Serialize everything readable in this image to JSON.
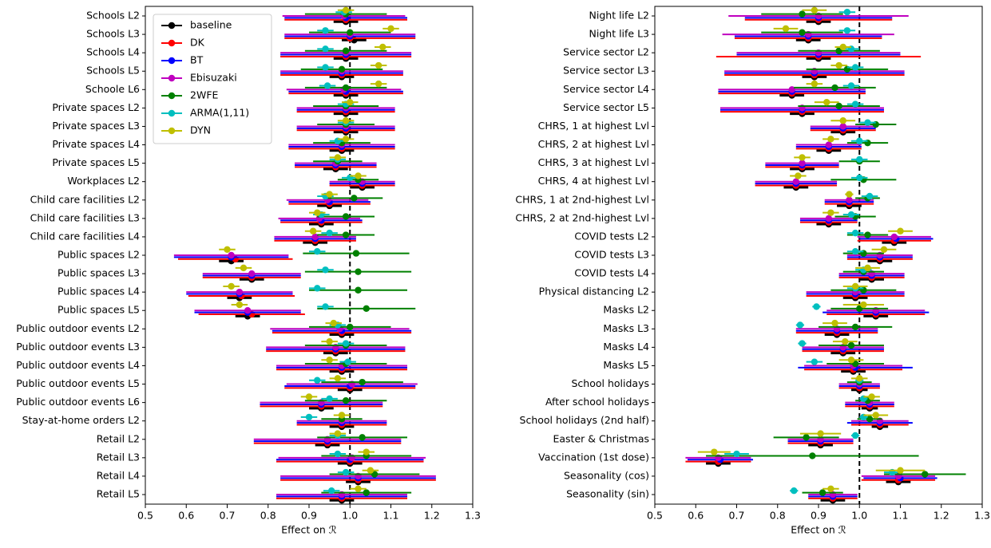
{
  "chart_data": [
    {
      "type": "forest",
      "xlabel": "Effect on ℛ",
      "categories": [
        "Schools L2",
        "Schools L3",
        "Schools L4",
        "Schools L5",
        "Schoole L6",
        "Private spaces L2",
        "Private spaces L3",
        "Private spaces L4",
        "Private spaces L5",
        "Workplaces L2",
        "Child care facilities L2",
        "Child care facilities L3",
        "Child care facilities L4",
        "Public spaces L2",
        "Public spaces L3",
        "Public spaces L4",
        "Public spaces L5",
        "Public outdoor events L2",
        "Public outdoor events L3",
        "Public outdoor events L4",
        "Public outdoor events L5",
        "Public outdoor events L6",
        "Stay-at-home orders L2",
        "Retail L2",
        "Retail L3",
        "Retail L4",
        "Retail L5"
      ],
      "series": [
        {
          "name": "baseline",
          "color": "#000000",
          "values": [
            0.99,
            1.01,
            0.99,
            0.98,
            0.99,
            0.99,
            0.99,
            0.98,
            0.965,
            1.03,
            0.95,
            0.93,
            0.915,
            0.71,
            0.76,
            0.73,
            0.75,
            0.98,
            0.965,
            0.98,
            1.0,
            0.93,
            0.98,
            0.945,
            1.0,
            1.02,
            0.98
          ],
          "errors": [
            0.03,
            0.03,
            0.03,
            0.03,
            0.03,
            0.03,
            0.03,
            0.03,
            0.03,
            0.03,
            0.03,
            0.03,
            0.03,
            0.03,
            0.03,
            0.03,
            0.03,
            0.03,
            0.03,
            0.03,
            0.03,
            0.03,
            0.03,
            0.03,
            0.03,
            0.03,
            0.03
          ]
        },
        {
          "name": "DK",
          "color": "#ff0000",
          "values": [
            0.99,
            1.0,
            0.99,
            0.98,
            0.99,
            0.99,
            0.99,
            0.98,
            0.965,
            1.03,
            0.95,
            0.93,
            0.915,
            0.72,
            0.76,
            0.735,
            0.76,
            0.98,
            0.965,
            0.98,
            1.0,
            0.93,
            0.98,
            0.945,
            1.0,
            1.02,
            0.98
          ],
          "errors": [
            0.15,
            0.16,
            0.16,
            0.15,
            0.14,
            0.12,
            0.12,
            0.13,
            0.1,
            0.08,
            0.1,
            0.1,
            0.1,
            0.14,
            0.12,
            0.13,
            0.13,
            0.17,
            0.17,
            0.16,
            0.16,
            0.15,
            0.11,
            0.18,
            0.18,
            0.19,
            0.16
          ]
        },
        {
          "name": "BT",
          "color": "#0000ff",
          "values": [
            0.99,
            1.0,
            0.99,
            0.98,
            0.99,
            0.99,
            0.99,
            0.98,
            0.965,
            1.03,
            0.95,
            0.93,
            0.915,
            0.71,
            0.76,
            0.73,
            0.75,
            0.98,
            0.965,
            0.98,
            1.0,
            0.93,
            0.98,
            0.945,
            1.0,
            1.02,
            0.98
          ],
          "errors": [
            0.15,
            0.16,
            0.16,
            0.15,
            0.14,
            0.12,
            0.12,
            0.13,
            0.1,
            0.08,
            0.1,
            0.1,
            0.1,
            0.14,
            0.12,
            0.13,
            0.13,
            0.17,
            0.17,
            0.16,
            0.16,
            0.15,
            0.11,
            0.18,
            0.18,
            0.19,
            0.16
          ]
        },
        {
          "name": "Ebisuzaki",
          "color": "#bf00bf",
          "values": [
            0.985,
            1.0,
            0.99,
            0.98,
            0.985,
            0.99,
            0.99,
            0.98,
            0.965,
            1.03,
            0.945,
            0.925,
            0.915,
            0.71,
            0.76,
            0.73,
            0.75,
            0.975,
            0.965,
            0.98,
            1.005,
            0.93,
            0.98,
            0.945,
            1.005,
            1.02,
            0.98
          ],
          "errors": [
            0.15,
            0.16,
            0.16,
            0.15,
            0.14,
            0.12,
            0.12,
            0.13,
            0.1,
            0.08,
            0.1,
            0.1,
            0.1,
            0.14,
            0.12,
            0.13,
            0.13,
            0.17,
            0.17,
            0.16,
            0.16,
            0.15,
            0.11,
            0.18,
            0.18,
            0.19,
            0.16
          ]
        },
        {
          "name": "2WFE",
          "color": "#008000",
          "values": [
            0.99,
            1.0,
            0.99,
            0.98,
            0.99,
            0.99,
            0.99,
            0.98,
            0.97,
            1.02,
            1.01,
            0.99,
            0.99,
            1.015,
            1.02,
            1.02,
            1.04,
            1.0,
            0.99,
            0.99,
            1.03,
            0.99,
            0.98,
            1.03,
            1.04,
            1.06,
            1.04
          ],
          "errors": [
            0.1,
            0.1,
            0.1,
            0.1,
            0.1,
            0.08,
            0.07,
            0.07,
            0.06,
            0.05,
            0.07,
            0.07,
            0.07,
            0.13,
            0.13,
            0.12,
            0.12,
            0.1,
            0.1,
            0.1,
            0.1,
            0.1,
            0.05,
            0.11,
            0.11,
            0.11,
            0.11
          ]
        },
        {
          "name": "ARMA(1,11)",
          "color": "#00bfbf",
          "values": [
            0.985,
            0.94,
            0.94,
            0.94,
            0.945,
            0.99,
            0.99,
            0.97,
            0.97,
            1.0,
            0.94,
            0.93,
            0.95,
            0.92,
            0.94,
            0.92,
            0.94,
            0.97,
            0.99,
            0.995,
            0.92,
            0.95,
            0.9,
            0.97,
            0.97,
            0.99,
            0.955
          ],
          "errors": [
            0.02,
            0.02,
            0.02,
            0.02,
            0.02,
            0.02,
            0.02,
            0.02,
            0.02,
            0.02,
            0.02,
            0.02,
            0.02,
            0.02,
            0.02,
            0.02,
            0.02,
            0.02,
            0.02,
            0.02,
            0.02,
            0.02,
            0.02,
            0.02,
            0.02,
            0.02,
            0.02
          ]
        },
        {
          "name": "DYN",
          "color": "#bfbf00",
          "values": [
            0.99,
            1.1,
            1.08,
            1.07,
            1.07,
            1.0,
            0.99,
            0.99,
            0.97,
            1.02,
            0.95,
            0.92,
            0.91,
            0.7,
            0.74,
            0.71,
            0.73,
            0.96,
            0.95,
            0.95,
            0.97,
            0.9,
            0.98,
            0.97,
            1.04,
            1.05,
            1.02
          ],
          "errors": [
            0.02,
            0.02,
            0.02,
            0.02,
            0.02,
            0.02,
            0.02,
            0.02,
            0.02,
            0.02,
            0.02,
            0.02,
            0.02,
            0.02,
            0.02,
            0.02,
            0.02,
            0.02,
            0.02,
            0.02,
            0.02,
            0.02,
            0.02,
            0.02,
            0.02,
            0.02,
            0.02
          ]
        }
      ],
      "xlim": [
        0.5,
        1.3
      ],
      "xticks": [
        0.5,
        0.6,
        0.7,
        0.8,
        0.9,
        {
          "value": 1,
          "label": "1.0"
        },
        1.1,
        1.2,
        1.3
      ],
      "vline": 1,
      "legend": "upper left"
    },
    {
      "type": "forest",
      "xlabel": "Effect on ℛ",
      "categories": [
        "Night life L2",
        "Night life L3",
        "Service sector L2",
        "Service sector L3",
        "Service sector L4",
        "Service sector L5",
        "CHRS, 1 at highest Lvl",
        "CHRS, 2 at highest Lvl",
        "CHRS, 3 at highest Lvl",
        "CHRS, 4 at highest Lvl",
        "CHRS, 1 at 2nd-highest Lvl",
        "CHRS, 2 at 2nd-highest Lvl",
        "COVID tests L2",
        "COVID tests L3",
        "COVID tests L4",
        "Physical distancing L2",
        "Masks L2",
        "Masks L3",
        "Masks L4",
        "Masks L5",
        "School holidays",
        "After school holidays",
        "School holidays (2nd half)",
        "Easter & Christmas",
        "Vaccination (1st dose)",
        "Seasonality (cos)",
        "Seasonality (sin)"
      ],
      "series": [
        {
          "name": "baseline",
          "color": "#000000",
          "values": [
            0.9,
            0.875,
            0.9,
            0.89,
            0.835,
            0.86,
            0.96,
            0.925,
            0.86,
            0.845,
            0.975,
            0.925,
            1.085,
            1.05,
            1.03,
            0.99,
            1.04,
            0.945,
            0.96,
            0.985,
            1.0,
            1.025,
            1.05,
            0.905,
            0.655,
            1.095,
            0.935
          ],
          "errors": [
            0.03,
            0.03,
            0.03,
            0.03,
            0.03,
            0.03,
            0.03,
            0.03,
            0.03,
            0.03,
            0.03,
            0.03,
            0.03,
            0.03,
            0.03,
            0.03,
            0.03,
            0.03,
            0.03,
            0.03,
            0.02,
            0.02,
            0.02,
            0.03,
            0.03,
            0.03,
            0.03
          ]
        },
        {
          "name": "DK",
          "color": "#ff0000",
          "values": [
            0.9,
            0.875,
            0.9,
            0.89,
            0.835,
            0.86,
            0.96,
            0.925,
            0.86,
            0.845,
            0.975,
            0.925,
            1.085,
            1.05,
            1.03,
            0.99,
            1.04,
            0.945,
            0.96,
            0.985,
            1.0,
            1.025,
            1.05,
            0.905,
            0.655,
            1.095,
            0.935
          ],
          "errors": [
            0.18,
            0.18,
            0.25,
            0.22,
            0.18,
            0.2,
            0.08,
            0.08,
            0.09,
            0.1,
            0.06,
            0.07,
            0.09,
            0.08,
            0.08,
            0.12,
            0.12,
            0.1,
            0.1,
            0.12,
            0.05,
            0.06,
            0.07,
            0.08,
            0.08,
            0.09,
            0.06
          ]
        },
        {
          "name": "BT",
          "color": "#0000ff",
          "values": [
            0.9,
            0.875,
            0.9,
            0.89,
            0.835,
            0.86,
            0.96,
            0.925,
            0.86,
            0.845,
            0.975,
            0.925,
            1.09,
            1.05,
            1.03,
            0.99,
            1.04,
            0.945,
            0.96,
            0.99,
            1.0,
            1.025,
            1.05,
            0.905,
            0.66,
            1.1,
            0.935
          ],
          "errors": [
            0.18,
            0.18,
            0.2,
            0.22,
            0.18,
            0.2,
            0.08,
            0.08,
            0.09,
            0.1,
            0.06,
            0.07,
            0.09,
            0.08,
            0.08,
            0.12,
            0.13,
            0.1,
            0.1,
            0.14,
            0.05,
            0.06,
            0.08,
            0.08,
            0.08,
            0.09,
            0.06
          ]
        },
        {
          "name": "Ebisuzaki",
          "color": "#bf00bf",
          "values": [
            0.9,
            0.875,
            0.9,
            0.89,
            0.835,
            0.86,
            0.96,
            0.925,
            0.86,
            0.845,
            0.975,
            0.925,
            1.085,
            1.05,
            1.03,
            0.99,
            1.04,
            0.945,
            0.96,
            0.985,
            1.0,
            1.025,
            1.05,
            0.905,
            0.655,
            1.095,
            0.935
          ],
          "errors": [
            0.22,
            0.21,
            0.2,
            0.22,
            0.18,
            0.2,
            0.08,
            0.08,
            0.09,
            0.1,
            0.06,
            0.07,
            0.09,
            0.08,
            0.08,
            0.12,
            0.12,
            0.1,
            0.1,
            0.12,
            0.05,
            0.06,
            0.07,
            0.08,
            0.08,
            0.09,
            0.06
          ]
        },
        {
          "name": "2WFE",
          "color": "#008000",
          "values": [
            0.86,
            0.86,
            0.95,
            0.97,
            0.94,
            0.95,
            1.04,
            1.02,
            1.0,
            1.01,
            1.02,
            0.99,
            1.02,
            1.01,
            1.01,
            1.01,
            1.0,
            0.99,
            0.98,
            0.99,
            1.0,
            1.02,
            1.025,
            0.87,
            0.885,
            1.16,
            0.91
          ],
          "errors": [
            0.1,
            0.1,
            0.1,
            0.1,
            0.1,
            0.1,
            0.05,
            0.05,
            0.05,
            0.08,
            0.03,
            0.05,
            0.05,
            0.05,
            0.05,
            0.08,
            0.07,
            0.09,
            0.08,
            0.07,
            0.03,
            0.03,
            0.03,
            0.08,
            0.26,
            0.1,
            0.05
          ]
        },
        {
          "name": "ARMA(1,11)",
          "color": "#00bfbf",
          "values": [
            0.97,
            0.97,
            0.98,
            0.99,
            0.98,
            0.99,
            1.02,
            1.0,
            1.0,
            1.0,
            1.025,
            0.98,
            0.99,
            0.99,
            1.01,
            0.99,
            0.895,
            0.855,
            0.86,
            0.89,
            1.0,
            1.01,
            1.01,
            0.99,
            0.7,
            1.08,
            0.84
          ],
          "errors": [
            0.02,
            0.02,
            0.02,
            0.02,
            0.02,
            0.02,
            0.02,
            0.02,
            0.02,
            0.02,
            0.02,
            0.02,
            0.02,
            0.02,
            0.02,
            0.02,
            0.01,
            0.01,
            0.01,
            0.02,
            0.01,
            0.01,
            0.01,
            0.01,
            0.03,
            0.02,
            0.01
          ]
        },
        {
          "name": "DYN",
          "color": "#bfbf00",
          "values": [
            0.89,
            0.82,
            0.96,
            0.95,
            0.89,
            0.92,
            0.96,
            0.93,
            0.86,
            0.85,
            0.975,
            0.93,
            1.1,
            1.06,
            1.02,
            0.99,
            1.01,
            0.94,
            0.965,
            0.98,
            1.0,
            1.03,
            1.04,
            0.905,
            0.645,
            1.1,
            0.93
          ],
          "errors": [
            0.03,
            0.03,
            0.02,
            0.02,
            0.02,
            0.03,
            0.03,
            0.02,
            0.02,
            0.02,
            0.01,
            0.02,
            0.03,
            0.03,
            0.03,
            0.03,
            0.05,
            0.03,
            0.03,
            0.03,
            0.02,
            0.02,
            0.03,
            0.05,
            0.04,
            0.06,
            0.02
          ]
        }
      ],
      "xlim": [
        0.5,
        1.3
      ],
      "xticks": [
        0.5,
        0.6,
        0.7,
        0.8,
        0.9,
        {
          "value": 1,
          "label": "1.0"
        },
        1.1,
        1.2,
        1.3
      ],
      "vline": 1
    }
  ]
}
